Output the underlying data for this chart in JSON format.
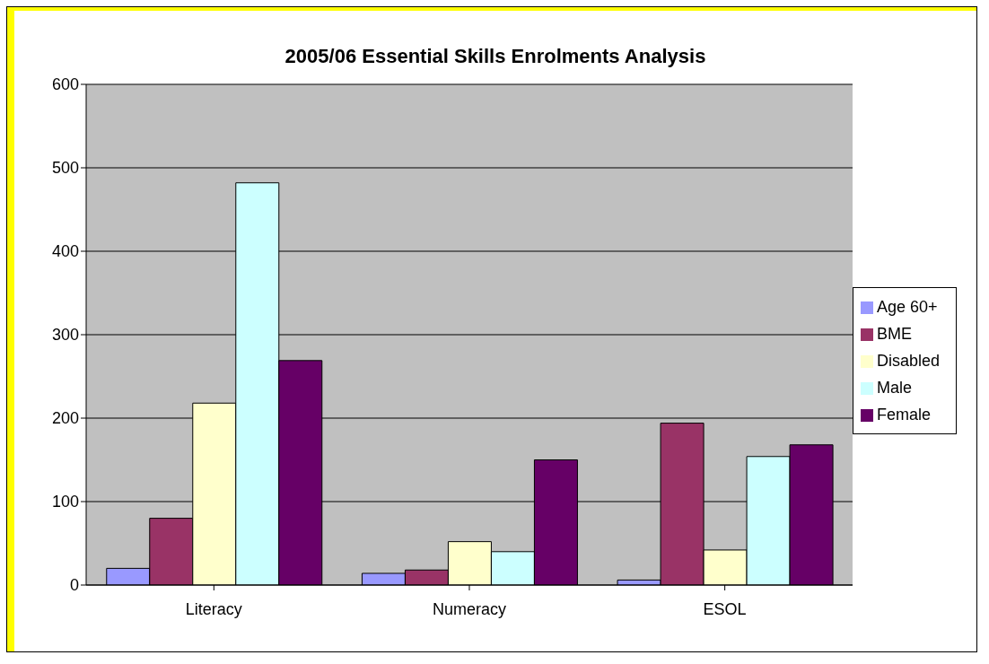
{
  "chart_data": {
    "type": "bar",
    "title": "2005/06 Essential Skills Enrolments Analysis",
    "categories": [
      "Literacy",
      "Numeracy",
      "ESOL"
    ],
    "series": [
      {
        "name": "Age 60+",
        "color": "#9999ff",
        "values": [
          20,
          14,
          6
        ]
      },
      {
        "name": "BME",
        "color": "#993366",
        "values": [
          80,
          18,
          194
        ]
      },
      {
        "name": "Disabled",
        "color": "#ffffcc",
        "values": [
          218,
          52,
          42
        ]
      },
      {
        "name": "Male",
        "color": "#ccffff",
        "values": [
          482,
          40,
          154
        ]
      },
      {
        "name": "Female",
        "color": "#660066",
        "values": [
          269,
          150,
          168
        ]
      }
    ],
    "ylim": [
      0,
      600
    ],
    "yticks": [
      0,
      100,
      200,
      300,
      400,
      500,
      600
    ],
    "grid": "y",
    "legend": "right"
  }
}
